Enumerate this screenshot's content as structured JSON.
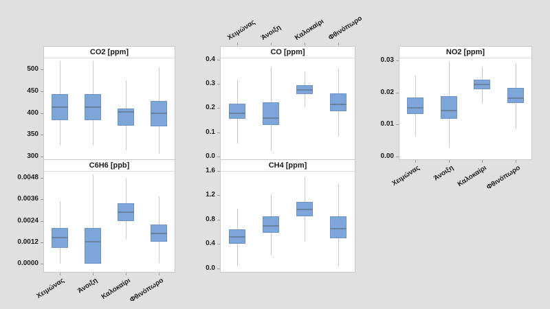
{
  "figure": {
    "background": "#e1e0de",
    "panel_bg": "#ffffff",
    "panel_border": "#c9c7c4",
    "box_fill": "#7da5da",
    "box_border": "#6d92c4",
    "median_color": "#67819f",
    "whisker_color": "#c9c8c5",
    "tick_color": "#999995",
    "text_color": "#1b1b1b"
  },
  "categories": [
    "Χειμώνας",
    "Άνοιξη",
    "Καλοκαίρι",
    "Φθινόπωρο"
  ],
  "chart_data": [
    {
      "type": "box",
      "title": "CO2 [ppm]",
      "grid": {
        "row": 0,
        "col": 0
      },
      "category_axis": "none",
      "ylim": [
        294,
        525
      ],
      "yticks": [
        {
          "v": 300,
          "label": "300"
        },
        {
          "v": 350,
          "label": "350"
        },
        {
          "v": 400,
          "label": "400"
        },
        {
          "v": 450,
          "label": "450"
        },
        {
          "v": 500,
          "label": "500"
        }
      ],
      "boxes": [
        {
          "category": "Χειμώνας",
          "low": 325,
          "q1": 384,
          "median": 413,
          "q3": 444,
          "high": 518
        },
        {
          "category": "Άνοιξη",
          "low": 325,
          "q1": 384,
          "median": 413,
          "q3": 444,
          "high": 518
        },
        {
          "category": "Καλοκαίρι",
          "low": 314,
          "q1": 371,
          "median": 402,
          "q3": 411,
          "high": 474
        },
        {
          "category": "Φθινόπωρο",
          "low": 307,
          "q1": 370,
          "median": 399,
          "q3": 427,
          "high": 504
        }
      ]
    },
    {
      "type": "box",
      "title": "CO [ppm]",
      "grid": {
        "row": 0,
        "col": 1
      },
      "category_axis": "top",
      "ylim": [
        -0.012,
        0.405
      ],
      "yticks": [
        {
          "v": 0.0,
          "label": "0.0"
        },
        {
          "v": 0.1,
          "label": "0.1"
        },
        {
          "v": 0.2,
          "label": "0.2"
        },
        {
          "v": 0.3,
          "label": "0.3"
        },
        {
          "v": 0.4,
          "label": "0.4"
        }
      ],
      "boxes": [
        {
          "category": "Χειμώνας",
          "low": 0.053,
          "q1": 0.154,
          "median": 0.178,
          "q3": 0.218,
          "high": 0.317
        },
        {
          "category": "Άνοιξη",
          "low": 0.022,
          "q1": 0.129,
          "median": 0.158,
          "q3": 0.223,
          "high": 0.368
        },
        {
          "category": "Καλοκαίρι",
          "low": 0.206,
          "q1": 0.257,
          "median": 0.274,
          "q3": 0.294,
          "high": 0.351
        },
        {
          "category": "Φθινόπωρο",
          "low": 0.085,
          "q1": 0.187,
          "median": 0.215,
          "q3": 0.26,
          "high": 0.363
        }
      ]
    },
    {
      "type": "box",
      "title": "NO2 [ppm]",
      "grid": {
        "row": 0,
        "col": 2
      },
      "category_axis": "bottom",
      "ylim": [
        -0.0009,
        0.0307
      ],
      "yticks": [
        {
          "v": 0.0,
          "label": "0.00"
        },
        {
          "v": 0.01,
          "label": "0.01"
        },
        {
          "v": 0.02,
          "label": "0.02"
        },
        {
          "v": 0.03,
          "label": "0.03"
        }
      ],
      "boxes": [
        {
          "category": "Χειμώνας",
          "low": 0.0061,
          "q1": 0.0132,
          "median": 0.0153,
          "q3": 0.0184,
          "high": 0.0254
        },
        {
          "category": "Άνοιξη",
          "low": 0.0028,
          "q1": 0.0117,
          "median": 0.0143,
          "q3": 0.0188,
          "high": 0.0296
        },
        {
          "category": "Καλοκαίρι",
          "low": 0.0167,
          "q1": 0.0211,
          "median": 0.0225,
          "q3": 0.024,
          "high": 0.0279
        },
        {
          "category": "Φθινόπωρο",
          "low": 0.0086,
          "q1": 0.0167,
          "median": 0.0182,
          "q3": 0.0214,
          "high": 0.0293
        }
      ]
    },
    {
      "type": "box",
      "title": "C6H6 [ppb]",
      "grid": {
        "row": 1,
        "col": 0
      },
      "category_axis": "bottom",
      "ylim": [
        -0.00045,
        0.00514
      ],
      "yticks": [
        {
          "v": 0.0,
          "label": "0.0000"
        },
        {
          "v": 0.0012,
          "label": "0.0012"
        },
        {
          "v": 0.0024,
          "label": "0.0024"
        },
        {
          "v": 0.0036,
          "label": "0.0036"
        },
        {
          "v": 0.0048,
          "label": "0.0048"
        }
      ],
      "boxes": [
        {
          "category": "Χειμώνας",
          "low": 0.0,
          "q1": 0.0009,
          "median": 0.00145,
          "q3": 0.002,
          "high": 0.0035
        },
        {
          "category": "Άνοιξη",
          "low": 0.0,
          "q1": 0.0,
          "median": 0.00125,
          "q3": 0.002,
          "high": 0.00498
        },
        {
          "category": "Καλοκαίρι",
          "low": 0.00135,
          "q1": 0.0024,
          "median": 0.00288,
          "q3": 0.00338,
          "high": 0.0048
        },
        {
          "category": "Φθινόπωρο",
          "low": 4e-05,
          "q1": 0.00124,
          "median": 0.0017,
          "q3": 0.0022,
          "high": 0.00376
        }
      ]
    },
    {
      "type": "box",
      "title": "CH4 [ppm]",
      "grid": {
        "row": 1,
        "col": 1
      },
      "category_axis": "none",
      "ylim": [
        -0.055,
        1.585
      ],
      "yticks": [
        {
          "v": 0.0,
          "label": "0.0"
        },
        {
          "v": 0.4,
          "label": "0.4"
        },
        {
          "v": 0.8,
          "label": "0.8"
        },
        {
          "v": 1.2,
          "label": "1.2"
        },
        {
          "v": 1.6,
          "label": "1.6"
        }
      ],
      "boxes": [
        {
          "category": "Χειμώνας",
          "low": 0.05,
          "q1": 0.4,
          "median": 0.52,
          "q3": 0.64,
          "high": 0.98
        },
        {
          "category": "Άνοιξη",
          "low": 0.21,
          "q1": 0.59,
          "median": 0.7,
          "q3": 0.85,
          "high": 1.21
        },
        {
          "category": "Καλοκαίρι",
          "low": 0.44,
          "q1": 0.85,
          "median": 0.97,
          "q3": 1.09,
          "high": 1.49
        },
        {
          "category": "Φθινόπωρο",
          "low": 0.04,
          "q1": 0.5,
          "median": 0.65,
          "q3": 0.86,
          "high": 1.39
        }
      ]
    }
  ]
}
